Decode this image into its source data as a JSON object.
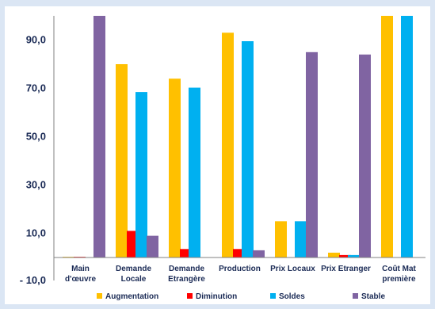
{
  "chart_data": {
    "type": "bar",
    "categories": [
      [
        "Main",
        "d'œuvre"
      ],
      [
        "Demande",
        "Locale"
      ],
      [
        "Demande",
        "Etrangère"
      ],
      [
        "Production"
      ],
      [
        "Prix Locaux"
      ],
      [
        "Prix Etranger"
      ],
      [
        "Coût Mat",
        "première"
      ]
    ],
    "series": [
      {
        "name": "Augmentation",
        "color": "#ffc000",
        "values": [
          0.3,
          80,
          74,
          93,
          15,
          2,
          100
        ]
      },
      {
        "name": "Diminution",
        "color": "#ff0000",
        "values": [
          0.3,
          11,
          3.5,
          3.5,
          0,
          1,
          0
        ]
      },
      {
        "name": "Soldes",
        "color": "#00b0f0",
        "values": [
          0,
          68.5,
          70.3,
          89.5,
          15,
          1,
          100
        ]
      },
      {
        "name": "Stable",
        "color": "#8064a2",
        "values": [
          100,
          9,
          0,
          3,
          85,
          84,
          0
        ]
      }
    ],
    "yticks": [
      -10,
      10,
      30,
      50,
      70,
      90
    ],
    "ytick_labels": [
      "- 10,0",
      "10,0",
      "30,0",
      "50,0",
      "70,0",
      "90,0"
    ],
    "ylim": [
      -10,
      100
    ],
    "grid": false,
    "legend_position": "bottom",
    "title": "",
    "xlabel": "",
    "ylabel": ""
  }
}
